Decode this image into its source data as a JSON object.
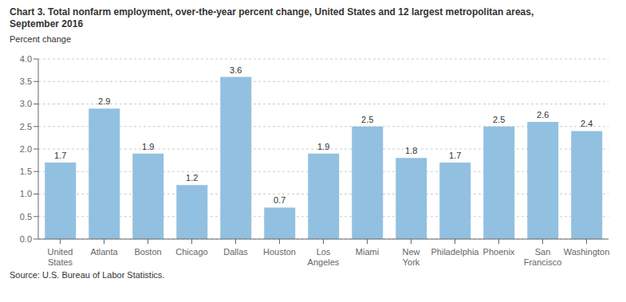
{
  "chart_data": {
    "type": "bar",
    "title": "Chart 3. Total nonfarm employment, over-the-year percent change, United States and 12 largest metropolitan areas,\nSeptember 2016",
    "ylabel": "Percent change",
    "source": "Source: U.S. Bureau of Labor Statistics.",
    "categories": [
      "United\nStates",
      "Atlanta",
      "Boston",
      "Chicago",
      "Dallas",
      "Houston",
      "Los\nAngeles",
      "Miami",
      "New\nYork",
      "Philadelphia",
      "Phoenix",
      "San\nFrancisco",
      "Washington"
    ],
    "values": [
      1.7,
      2.9,
      1.9,
      1.2,
      3.6,
      0.7,
      1.9,
      2.5,
      1.8,
      1.7,
      2.5,
      2.6,
      2.4
    ],
    "color": "#92C0E0",
    "ylim": [
      0,
      4.0
    ],
    "yticks": [
      {
        "value": 0,
        "label": "0.0"
      },
      0.5,
      {
        "value": 1,
        "label": "1.0"
      },
      1.5,
      {
        "value": 2,
        "label": "2.0"
      },
      2.5,
      {
        "value": 3,
        "label": "3.0"
      },
      3.5,
      {
        "value": 4,
        "label": "4.0"
      }
    ],
    "grid": true,
    "data_labels": true
  }
}
